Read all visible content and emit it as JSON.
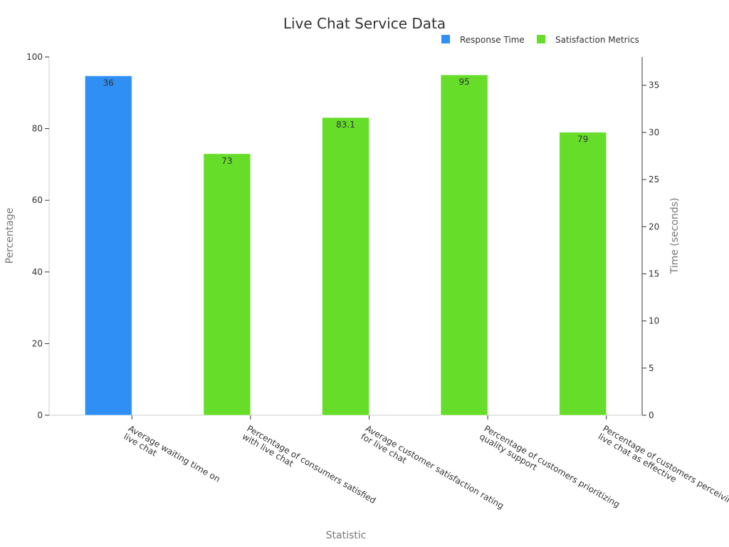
{
  "chart_data": {
    "type": "bar",
    "title": "Live Chat Service Data",
    "xlabel": "Statistic",
    "ylabel": "Percentage",
    "y2label": "Time (seconds)",
    "ylim": [
      0,
      100
    ],
    "y2lim": [
      0,
      38
    ],
    "yticks": [
      0,
      20,
      40,
      60,
      80,
      100
    ],
    "y2ticks": [
      0,
      5,
      10,
      15,
      20,
      25,
      30,
      35
    ],
    "grid": false,
    "legend_position": "top-right",
    "categories": [
      [
        "Average waiting time on",
        "live chat"
      ],
      [
        "Percentage of consumers satisfied",
        "with live chat"
      ],
      [
        "Average customer satisfaction rating",
        "for live chat"
      ],
      [
        "Percentage of customers prioritizing",
        "quality support"
      ],
      [
        "Percentage of customers perceiving",
        "live chat as effective"
      ]
    ],
    "series": [
      {
        "name": "Response Time",
        "color": "#2f8ff5",
        "axis": "right",
        "values": [
          36,
          null,
          null,
          null,
          null
        ],
        "labels": [
          "36",
          null,
          null,
          null,
          null
        ]
      },
      {
        "name": "Satisfaction Metrics",
        "color": "#66dd29",
        "axis": "left",
        "values": [
          null,
          73,
          83.1,
          95,
          79
        ],
        "labels": [
          null,
          "73",
          "83.1",
          "95",
          "79"
        ]
      }
    ]
  }
}
